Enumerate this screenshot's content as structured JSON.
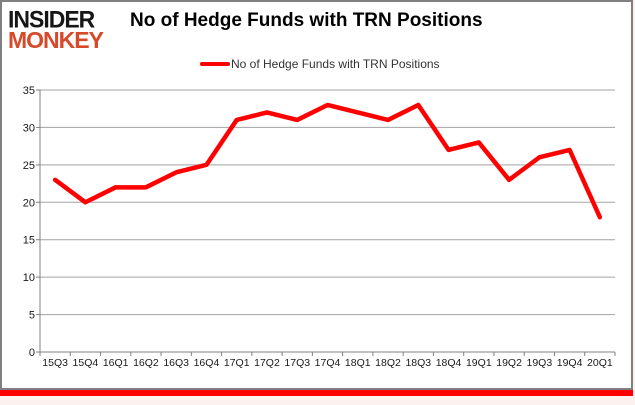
{
  "logo": {
    "line1": "INSIDER",
    "line2": "MONKEY"
  },
  "header": {
    "title": "No of Hedge Funds with TRN Positions"
  },
  "legend": {
    "label": "No of Hedge Funds with TRN Positions",
    "color": "#fe0000"
  },
  "colors": {
    "series_line": "#fe0000",
    "grid_line": "#a3a3a3",
    "axis_line": "#808080",
    "tick_label": "#1a1a1a",
    "background": "#ffffff",
    "frame_border": "#7f7f7f",
    "bottom_bar": "#fe0000",
    "page_background": "#fdf1f0",
    "logo_black": "#161616",
    "logo_red": "#d6492a"
  },
  "chart_data": {
    "type": "line",
    "title": "No of Hedge Funds with TRN Positions",
    "categories": [
      "15Q3",
      "15Q4",
      "16Q1",
      "16Q2",
      "16Q3",
      "16Q4",
      "17Q1",
      "17Q2",
      "17Q3",
      "17Q4",
      "18Q1",
      "18Q2",
      "18Q3",
      "18Q4",
      "19Q1",
      "19Q2",
      "19Q3",
      "19Q4",
      "20Q1"
    ],
    "series": [
      {
        "name": "No of Hedge Funds with TRN Positions",
        "color": "#fe0000",
        "values": [
          23,
          20,
          22,
          22,
          24,
          25,
          31,
          32,
          31,
          33,
          32,
          31,
          33,
          27,
          28,
          23,
          26,
          27,
          18
        ]
      }
    ],
    "xlabel": "",
    "ylabel": "",
    "ylim": [
      0,
      35
    ],
    "ytick_step": 5,
    "grid": true,
    "legend_position": "top"
  }
}
